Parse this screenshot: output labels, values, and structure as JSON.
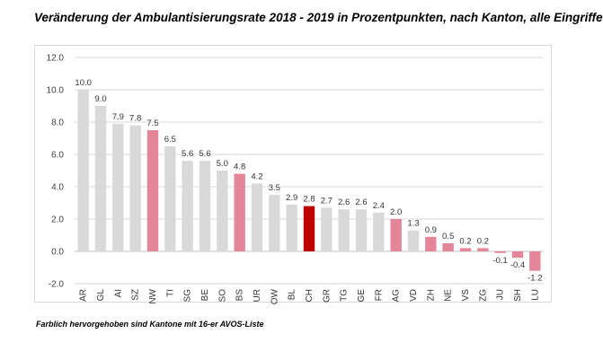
{
  "title": "Veränderung der Ambulantisierungsrate 2018 - 2019 in Prozentpunkten, nach Kanton, alle Eingriffe",
  "footnote": "Farblich hervorgehoben sind Kantone mit 16-er AVOS-Liste",
  "colors": {
    "default": "#d9d9d9",
    "highlight": "#e3869a",
    "ch": "#c00000",
    "grid": "#d9d9d9",
    "axis": "#bfbfbf"
  },
  "chart_data": {
    "type": "bar",
    "title": "Veränderung der Ambulantisierungsrate 2018 - 2019 in Prozentpunkten, nach Kanton, alle Eingriffe",
    "xlabel": "",
    "ylabel": "",
    "ylim": [
      -2.0,
      12.0
    ],
    "yticks": [
      -2.0,
      0.0,
      2.0,
      4.0,
      6.0,
      8.0,
      10.0,
      12.0
    ],
    "ytick_labels": [
      "-2.0",
      "0.0",
      "2.0",
      "4.0",
      "6.0",
      "8.0",
      "10.0",
      "12.0"
    ],
    "categories": [
      "AR",
      "GL",
      "AI",
      "SZ",
      "NW",
      "TI",
      "SG",
      "BE",
      "SO",
      "BS",
      "UR",
      "OW",
      "BL",
      "CH",
      "GR",
      "TG",
      "GE",
      "FR",
      "AG",
      "VD",
      "ZH",
      "NE",
      "VS",
      "ZG",
      "JU",
      "SH",
      "LU"
    ],
    "values": [
      10.0,
      9.0,
      7.9,
      7.8,
      7.5,
      6.5,
      5.6,
      5.6,
      5.0,
      4.8,
      4.2,
      3.5,
      2.9,
      2.8,
      2.7,
      2.6,
      2.6,
      2.4,
      2.0,
      1.3,
      0.9,
      0.5,
      0.2,
      0.2,
      -0.1,
      -0.4,
      -1.2
    ],
    "value_labels": [
      "10.0",
      "9.0",
      "7.9",
      "7.8",
      "7.5",
      "6.5",
      "5.6",
      "5.6",
      "5.0",
      "4.8",
      "4.2",
      "3.5",
      "2.9",
      "2.8",
      "2.7",
      "2.6",
      "2.6",
      "2.4",
      "2.0",
      "1.3",
      "0.9",
      "0.5",
      "0.2",
      "0.2",
      "-0.1",
      "-0.4",
      "-1.2"
    ],
    "highlight": [
      "default",
      "default",
      "default",
      "default",
      "highlight",
      "default",
      "default",
      "default",
      "default",
      "highlight",
      "default",
      "default",
      "default",
      "ch",
      "default",
      "default",
      "default",
      "default",
      "highlight",
      "default",
      "highlight",
      "highlight",
      "highlight",
      "highlight",
      "highlight",
      "highlight",
      "highlight"
    ],
    "grid": true,
    "legend": "none"
  }
}
